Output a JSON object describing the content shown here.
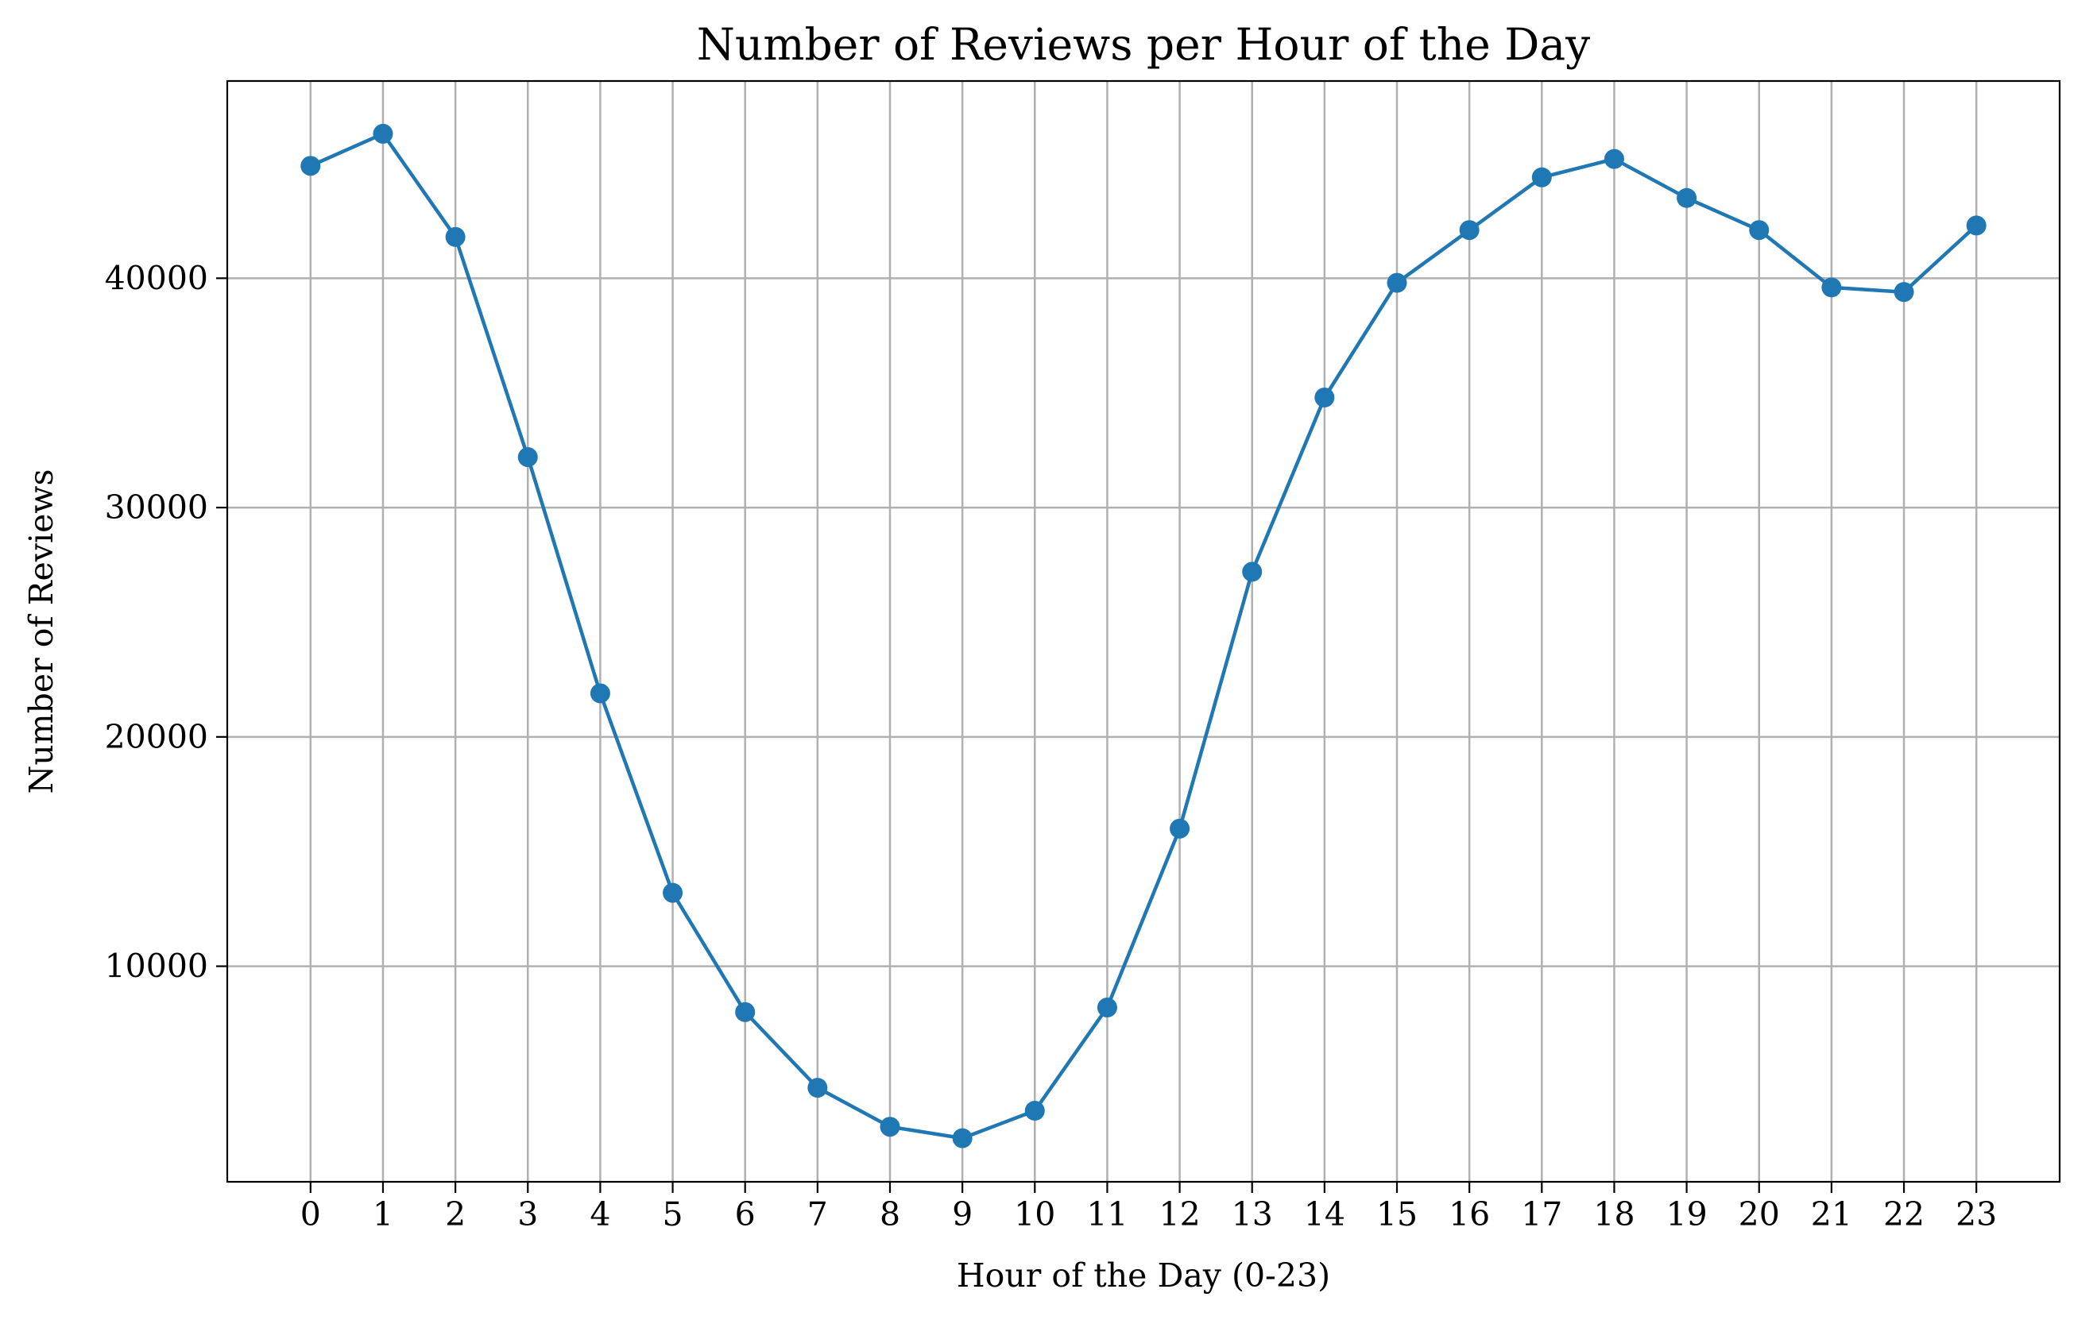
{
  "chart_data": {
    "type": "line",
    "title": "Number of Reviews per Hour of the Day",
    "xlabel": "Hour of the Day (0-23)",
    "ylabel": "Number of Reviews",
    "x": [
      0,
      1,
      2,
      3,
      4,
      5,
      6,
      7,
      8,
      9,
      10,
      11,
      12,
      13,
      14,
      15,
      16,
      17,
      18,
      19,
      20,
      21,
      22,
      23
    ],
    "x_tick_labels": [
      "0",
      "1",
      "2",
      "3",
      "4",
      "5",
      "6",
      "7",
      "8",
      "9",
      "10",
      "11",
      "12",
      "13",
      "14",
      "15",
      "16",
      "17",
      "18",
      "19",
      "20",
      "21",
      "22",
      "23"
    ],
    "y_ticks": [
      10000,
      20000,
      30000,
      40000
    ],
    "y_tick_labels": [
      "10000",
      "20000",
      "30000",
      "40000"
    ],
    "xlim": [
      -1.15,
      24.15
    ],
    "ylim": [
      600,
      48600
    ],
    "grid": true,
    "series": [
      {
        "color": "#1f77b4",
        "marker": "circle",
        "values": [
          44900,
          46300,
          41800,
          32200,
          21900,
          13200,
          8000,
          4700,
          3000,
          2500,
          3700,
          8200,
          16000,
          27200,
          34800,
          39800,
          42100,
          44400,
          45200,
          43500,
          42100,
          39600,
          39400,
          42300
        ]
      }
    ]
  }
}
